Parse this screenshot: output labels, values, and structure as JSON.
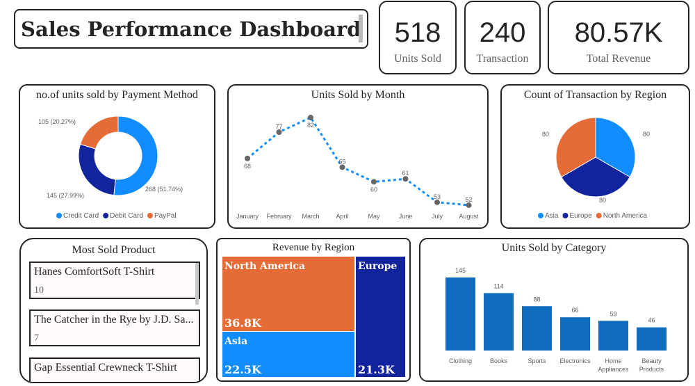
{
  "header": {
    "title": "Sales Performance Dashboard"
  },
  "kpis": [
    {
      "value": "518",
      "label": "Units Sold"
    },
    {
      "value": "240",
      "label": "Transaction"
    },
    {
      "value": "80.57K",
      "label": "Total Revenue"
    }
  ],
  "most_sold": {
    "title": "Most Sold Product",
    "items": [
      {
        "name": "Hanes ComfortSoft T-Shirt",
        "value": "10"
      },
      {
        "name": "The Catcher in the Rye by J.D. Sa...",
        "value": "7"
      },
      {
        "name": "Gap Essential Crewneck T-Shirt",
        "value": ""
      }
    ]
  },
  "colors": {
    "blue": "#118DFF",
    "navy": "#12239E",
    "orange": "#E66C37",
    "bar": "#0F6CBD"
  },
  "chart_data": [
    {
      "type": "pie",
      "variant": "donut",
      "title": "no.of units sold by Payment Method",
      "categories": [
        "Credit Card",
        "Debit Card",
        "PayPal"
      ],
      "values": [
        268,
        145,
        105
      ],
      "labels": [
        "268 (51.74%)",
        "145 (27.99%)",
        "105 (20.27%)"
      ],
      "colors": [
        "#118DFF",
        "#12239E",
        "#E66C37"
      ],
      "legend": "bottom"
    },
    {
      "type": "line",
      "title": "Units Sold by Month",
      "categories": [
        "January",
        "February",
        "March",
        "April",
        "May",
        "June",
        "July",
        "August"
      ],
      "values": [
        68,
        77,
        82,
        65,
        60,
        61,
        53,
        52
      ],
      "line_style": "dotted",
      "color": "#118DFF",
      "grid": false
    },
    {
      "type": "pie",
      "title": "Count of Transaction by Region",
      "categories": [
        "Asia",
        "Europe",
        "North America"
      ],
      "values": [
        80,
        80,
        80
      ],
      "colors": [
        "#118DFF",
        "#12239E",
        "#E66C37"
      ],
      "legend": "bottom"
    },
    {
      "type": "treemap",
      "title": "Revenue by Region",
      "categories": [
        "North America",
        "Asia",
        "Europe"
      ],
      "values": [
        "36.8K",
        "22.5K",
        "21.3K"
      ],
      "colors": [
        "#E66C37",
        "#118DFF",
        "#12239E"
      ]
    },
    {
      "type": "bar",
      "title": "Units Sold by Category",
      "categories": [
        "Clothing",
        "Books",
        "Sports",
        "Electronics",
        "Home Appliances",
        "Beauty Products"
      ],
      "values": [
        145,
        114,
        88,
        66,
        59,
        46
      ],
      "color": "#0F6CBD",
      "grid": false
    }
  ]
}
